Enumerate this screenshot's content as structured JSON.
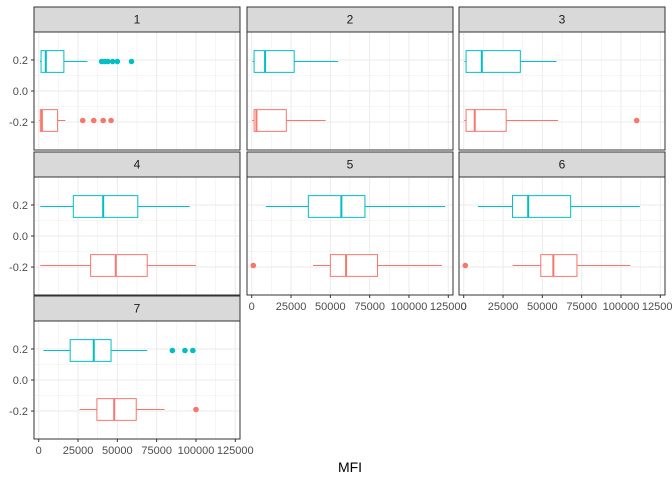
{
  "chart_data": {
    "type": "boxplot",
    "facet_type": "wrap",
    "facet_ncol": 3,
    "xlabel": "MFI",
    "ylabel": "",
    "xlim": [
      -3000,
      128000
    ],
    "ylim": [
      -0.38,
      0.38
    ],
    "x_ticks": [
      0,
      25000,
      50000,
      75000,
      100000,
      125000
    ],
    "x_tick_labels": [
      "0",
      "25000",
      "50000",
      "75000",
      "100000",
      "125000"
    ],
    "y_ticks": [
      0.2,
      0.0,
      -0.2
    ],
    "y_tick_labels": [
      "0.2",
      "0.0",
      "-0.2"
    ],
    "grid": true,
    "legend": "none",
    "series_colors": {
      "teal": "#00BFC4",
      "salmon": "#F8766D"
    },
    "box_half_height": 0.07,
    "panels": [
      {
        "label": "1",
        "boxes": [
          {
            "color": "teal",
            "y": 0.19,
            "whisker_low": 800,
            "q1": 1500,
            "median": 4500,
            "q3": 16000,
            "whisker_high": 31000,
            "outliers": [
              40000,
              42000,
              44000,
              47000,
              50000,
              59000
            ]
          },
          {
            "color": "salmon",
            "y": -0.19,
            "whisker_low": 300,
            "q1": 1000,
            "median": 2000,
            "q3": 12000,
            "whisker_high": 17000,
            "outliers": [
              28000,
              35000,
              41000,
              46000
            ]
          }
        ]
      },
      {
        "label": "2",
        "boxes": [
          {
            "color": "teal",
            "y": 0.19,
            "whisker_low": 500,
            "q1": 1500,
            "median": 8500,
            "q3": 27000,
            "whisker_high": 55000,
            "outliers": []
          },
          {
            "color": "salmon",
            "y": -0.19,
            "whisker_low": 300,
            "q1": 1500,
            "median": 3000,
            "q3": 22000,
            "whisker_high": 47000,
            "outliers": []
          }
        ]
      },
      {
        "label": "3",
        "boxes": [
          {
            "color": "teal",
            "y": 0.19,
            "whisker_low": 500,
            "q1": 1500,
            "median": 11500,
            "q3": 36000,
            "whisker_high": 59000,
            "outliers": []
          },
          {
            "color": "salmon",
            "y": -0.19,
            "whisker_low": 300,
            "q1": 1500,
            "median": 7000,
            "q3": 27000,
            "whisker_high": 60000,
            "outliers": [
              110000
            ]
          }
        ]
      },
      {
        "label": "4",
        "boxes": [
          {
            "color": "teal",
            "y": 0.19,
            "whisker_low": 1000,
            "q1": 22000,
            "median": 41000,
            "q3": 63000,
            "whisker_high": 96000,
            "outliers": []
          },
          {
            "color": "salmon",
            "y": -0.19,
            "whisker_low": 1000,
            "q1": 33000,
            "median": 49000,
            "q3": 69000,
            "whisker_high": 100000,
            "outliers": []
          }
        ]
      },
      {
        "label": "5",
        "boxes": [
          {
            "color": "teal",
            "y": 0.19,
            "whisker_low": 9000,
            "q1": 36000,
            "median": 57000,
            "q3": 72000,
            "whisker_high": 123000,
            "outliers": []
          },
          {
            "color": "salmon",
            "y": -0.19,
            "whisker_low": 39000,
            "q1": 50000,
            "median": 60000,
            "q3": 80000,
            "whisker_high": 121000,
            "outliers": [
              1000
            ]
          }
        ]
      },
      {
        "label": "6",
        "boxes": [
          {
            "color": "teal",
            "y": 0.19,
            "whisker_low": 9000,
            "q1": 31000,
            "median": 41000,
            "q3": 68000,
            "whisker_high": 112000,
            "outliers": []
          },
          {
            "color": "salmon",
            "y": -0.19,
            "whisker_low": 31000,
            "q1": 49000,
            "median": 57000,
            "q3": 72000,
            "whisker_high": 106000,
            "outliers": [
              1000
            ]
          }
        ]
      },
      {
        "label": "7",
        "boxes": [
          {
            "color": "teal",
            "y": 0.19,
            "whisker_low": 3000,
            "q1": 20000,
            "median": 35000,
            "q3": 46000,
            "whisker_high": 69000,
            "outliers": [
              85000,
              93000,
              98000
            ]
          },
          {
            "color": "salmon",
            "y": -0.19,
            "whisker_low": 26000,
            "q1": 37000,
            "median": 48000,
            "q3": 62000,
            "whisker_high": 80000,
            "outliers": [
              100000
            ]
          }
        ]
      }
    ]
  }
}
